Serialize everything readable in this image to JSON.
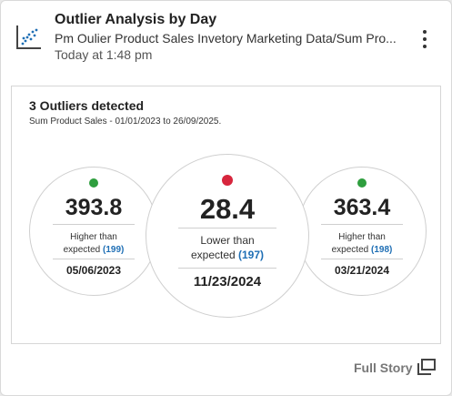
{
  "header": {
    "title": "Outlier Analysis by Day",
    "subtitle": "Pm Oulier Product Sales Invetory Marketing Data/Sum Pro...",
    "timestamp": "Today at 1:48 pm",
    "icon": "scatter-chart-icon",
    "menu_icon": "kebab-menu-icon"
  },
  "panel": {
    "title": "3 Outliers detected",
    "subtitle": "Sum Product Sales - 01/01/2023 to 26/09/2025."
  },
  "outliers": [
    {
      "value": "393.8",
      "desc_line1": "Higher than",
      "desc_line2": "expected",
      "expected": "(199)",
      "date": "05/06/2023",
      "status_color": "#2e9e3e"
    },
    {
      "value": "28.4",
      "desc_line1": "Lower than",
      "desc_line2": "expected",
      "expected": "(197)",
      "date": "11/23/2024",
      "status_color": "#d7263d"
    },
    {
      "value": "363.4",
      "desc_line1": "Higher than",
      "desc_line2": "expected",
      "expected": "(198)",
      "date": "03/21/2024",
      "status_color": "#2e9e3e"
    }
  ],
  "footer": {
    "full_story_label": "Full Story",
    "icon": "open-window-icon"
  },
  "colors": {
    "accent_blue": "#1f6fb5",
    "higher": "#2e9e3e",
    "lower": "#d7263d"
  }
}
